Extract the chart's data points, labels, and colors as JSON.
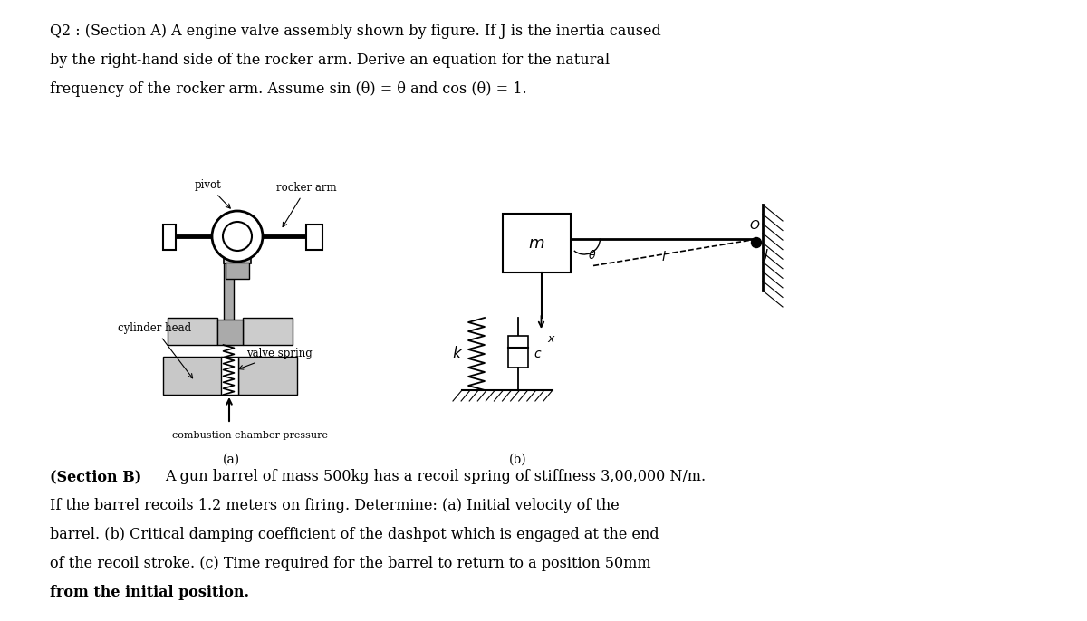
{
  "title_line1": "Q2 : (Section A) A engine valve assembly shown by figure. If J is the inertia caused",
  "title_line2": "by the right-hand side of the rocker arm. Derive an equation for the natural",
  "title_line3": "frequency of the rocker arm. Assume sin (θ) = θ and cos (θ) = 1.",
  "section_b_line1": "(Section B) A gun barrel of mass 500kg has a recoil spring of stiffness 3,00,000 N/m.",
  "section_b_line2": "If the barrel recoils 1.2 meters on firing. Determine: (a) Initial velocity of the",
  "section_b_line3": "barrel. (b) Critical damping coefficient of the dashpot which is engaged at the end",
  "section_b_line4": "of the recoil stroke. (c) Time required for the barrel to return to a position 50mm",
  "section_b_line5": "from the initial position.",
  "bg_color": "#ffffff",
  "text_color": "#000000",
  "label_a": "(a)",
  "label_b": "(b)"
}
